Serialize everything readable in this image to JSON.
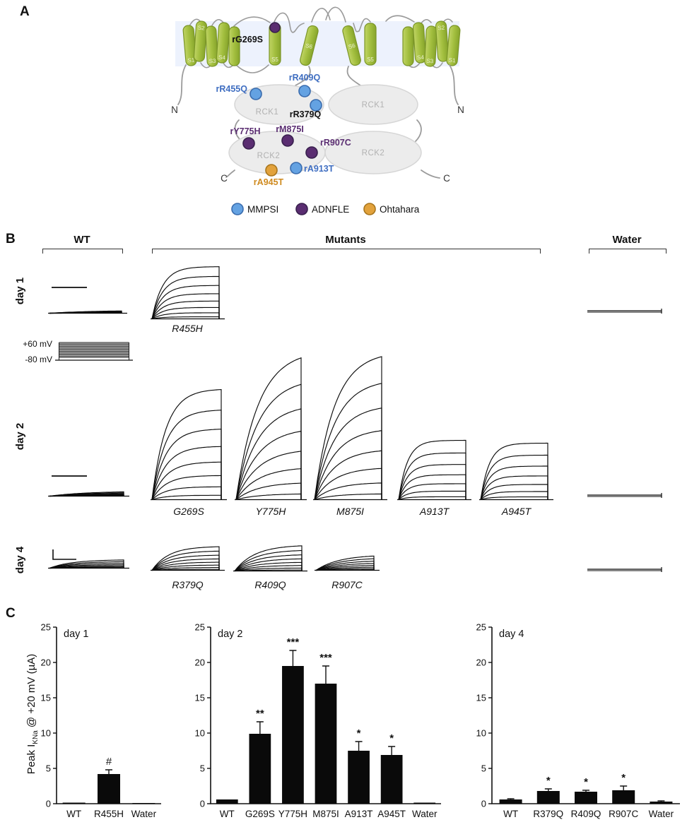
{
  "panelA": {
    "label": "A",
    "segments": [
      "S1",
      "S2",
      "S3",
      "S4",
      "S5",
      "S6"
    ],
    "termini": {
      "n": "N",
      "c": "C"
    },
    "domains": {
      "rck1": "RCK1",
      "rck2": "RCK2"
    },
    "mutations": {
      "g269s": "rG269S",
      "r455q": "rR455Q",
      "r409q": "rR409Q",
      "r379q": "rR379Q",
      "y775h": "rY775H",
      "m875i": "rM875I",
      "r907c": "rR907C",
      "a913t": "rA913T",
      "a945t": "rA945T"
    },
    "legend": [
      {
        "label": "MMPSI",
        "type": "mmpsi"
      },
      {
        "label": "ADNFLE",
        "type": "adnfle"
      },
      {
        "label": "Ohtahara",
        "type": "ohtahara"
      }
    ],
    "colors": {
      "mmpsi": "#64a2e2",
      "adnfle": "#5a2d71",
      "ohtahara": "#e2a23c",
      "label_blue": "#3f6ec1",
      "label_purple": "#5a2d71",
      "label_orange": "#cf8a1f"
    }
  },
  "panelB": {
    "label": "B",
    "headers": {
      "wt": "WT",
      "mutants": "Mutants",
      "water": "Water"
    },
    "row_labels": {
      "day1": "day 1",
      "day2": "day 2",
      "day4": "day 4"
    },
    "protocol": {
      "top": "+60 mV",
      "bottom": "-80 mV"
    },
    "trace_labels": {
      "r455h": "R455H",
      "g269s": "G269S",
      "y775h": "Y775H",
      "m875i": "M875I",
      "a913t": "A913T",
      "a945t": "A945T",
      "r379q": "R379Q",
      "r409q": "R409Q",
      "r907c": "R907C"
    },
    "traces": {
      "day1_wt": {
        "kind": "bundle",
        "n": 7,
        "rise": 4,
        "tau": 0.6,
        "scalebar": "h"
      },
      "day1_r455h": {
        "kind": "family",
        "n": 8,
        "tau": 0.16
      },
      "day1_water": {
        "kind": "flat",
        "n": 2
      },
      "protocol": {
        "kind": "step",
        "n": 13
      },
      "day2_wt": {
        "kind": "bundle",
        "n": 7,
        "rise": 7,
        "tau": 0.5,
        "scalebar": "h"
      },
      "day2_g269s": {
        "kind": "family",
        "n": 8,
        "tau": 0.2
      },
      "day2_y775h": {
        "kind": "family",
        "n": 8,
        "tau": 0.34
      },
      "day2_m875i": {
        "kind": "family",
        "n": 8,
        "tau": 0.3
      },
      "day2_a913t": {
        "kind": "family",
        "n": 7,
        "tau": 0.13
      },
      "day2_a945t": {
        "kind": "family",
        "n": 7,
        "tau": 0.13
      },
      "day2_water": {
        "kind": "flat",
        "n": 2
      },
      "day4_wt": {
        "kind": "bundle",
        "n": 7,
        "rise": 12,
        "tau": 0.3,
        "scalebar": "L"
      },
      "day4_r379q": {
        "kind": "family",
        "n": 8,
        "tau": 0.25
      },
      "day4_r409q": {
        "kind": "family",
        "n": 8,
        "tau": 0.3
      },
      "day4_r907c": {
        "kind": "family",
        "n": 8,
        "tau": 0.4
      },
      "day4_water": {
        "kind": "flat",
        "n": 2
      }
    }
  },
  "panelC": {
    "label": "C",
    "ylabel_pre": "Peak I",
    "ylabel_sub": "KNa",
    "ylabel_post": " @ +20 mV (µA)"
  },
  "chart_data": [
    {
      "type": "bar",
      "title": "day 1",
      "categories": [
        "WT",
        "R455H",
        "Water"
      ],
      "values": [
        0.15,
        4.2,
        0.1
      ],
      "errors": [
        0,
        0.6,
        0
      ],
      "annotations": [
        "",
        "#",
        ""
      ],
      "ylabel": "Peak IKNa @ +20 mV (µA)",
      "ylim": [
        0,
        25
      ],
      "ytick_step": 5,
      "grid": false,
      "bar_color": "#0a0a0a"
    },
    {
      "type": "bar",
      "title": "day 2",
      "categories": [
        "WT",
        "G269S",
        "Y775H",
        "M875I",
        "A913T",
        "A945T",
        "Water"
      ],
      "values": [
        0.6,
        9.9,
        19.5,
        17.0,
        7.5,
        6.9,
        0.15
      ],
      "errors": [
        0,
        1.7,
        2.2,
        2.5,
        1.3,
        1.2,
        0
      ],
      "annotations": [
        "",
        "**",
        "***",
        "***",
        "*",
        "*",
        ""
      ],
      "ylabel": "Peak IKNa @ +20 mV (µA)",
      "ylim": [
        0,
        25
      ],
      "ytick_step": 5,
      "grid": false,
      "bar_color": "#0a0a0a"
    },
    {
      "type": "bar",
      "title": "day 4",
      "categories": [
        "WT",
        "R379Q",
        "R409Q",
        "R907C",
        "Water"
      ],
      "values": [
        0.6,
        1.8,
        1.7,
        1.9,
        0.3
      ],
      "errors": [
        0.1,
        0.3,
        0.2,
        0.6,
        0.1
      ],
      "annotations": [
        "",
        "*",
        "*",
        "*",
        ""
      ],
      "ylabel": "Peak IKNa @ +20 mV (µA)",
      "ylim": [
        0,
        25
      ],
      "ytick_step": 5,
      "grid": false,
      "bar_color": "#0a0a0a"
    }
  ]
}
